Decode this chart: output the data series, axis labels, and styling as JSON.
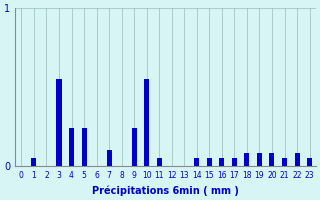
{
  "xlabel": "Précipitations 6min ( mm )",
  "background_color": "#d8f5f5",
  "bar_color": "#0000cc",
  "ylim": [
    0,
    1.0
  ],
  "xlim": [
    -0.5,
    23.5
  ],
  "yticks": [
    0,
    1
  ],
  "xticks": [
    0,
    1,
    2,
    3,
    4,
    5,
    6,
    7,
    8,
    9,
    10,
    11,
    12,
    13,
    14,
    15,
    16,
    17,
    18,
    19,
    20,
    21,
    22,
    23
  ],
  "grid_color": "#99bbbb",
  "bar_heights": [
    0.0,
    0.05,
    0.0,
    0.55,
    0.24,
    0.24,
    0.0,
    0.1,
    0.0,
    0.24,
    0.55,
    0.05,
    0.0,
    0.0,
    0.05,
    0.05,
    0.05,
    0.05,
    0.08,
    0.08,
    0.08,
    0.05,
    0.08,
    0.05
  ],
  "bar_width": 0.4
}
